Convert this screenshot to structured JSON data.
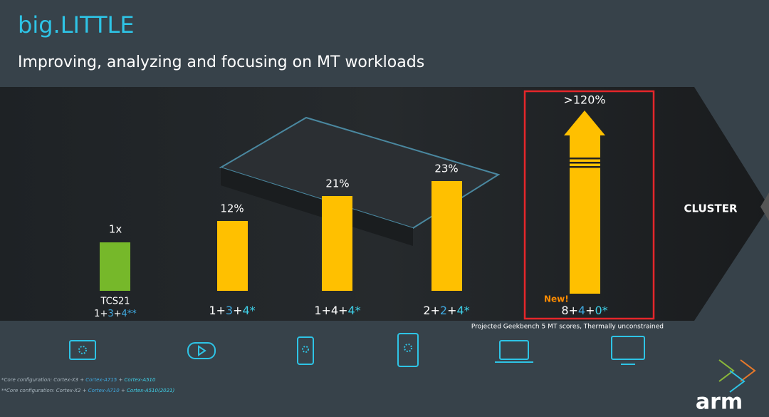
{
  "header": {
    "title": "big.LITTLE",
    "subtitle": "Improving, analyzing and focusing on MT workloads"
  },
  "bars": [
    {
      "label": "1x",
      "name": "TCS21",
      "config": [
        {
          "text": "1+",
          "color": "#ffffff"
        },
        {
          "text": "3",
          "color": "#3fa9e0"
        },
        {
          "text": "+",
          "color": "#ffffff"
        },
        {
          "text": "4**",
          "color": "#3fa9e0"
        }
      ]
    },
    {
      "label": "12%",
      "config": [
        {
          "text": "1+",
          "color": "#ffffff"
        },
        {
          "text": "3",
          "color": "#3fa9e0"
        },
        {
          "text": "+",
          "color": "#ffffff"
        },
        {
          "text": "4*",
          "color": "#3fd0e8"
        }
      ]
    },
    {
      "label": "21%",
      "config": [
        {
          "text": "1+4+",
          "color": "#ffffff"
        },
        {
          "text": "4*",
          "color": "#3fd0e8"
        }
      ]
    },
    {
      "label": "23%",
      "config": [
        {
          "text": "2+",
          "color": "#ffffff"
        },
        {
          "text": "2",
          "color": "#3fa9e0"
        },
        {
          "text": "+",
          "color": "#ffffff"
        },
        {
          "text": "4*",
          "color": "#3fd0e8"
        }
      ]
    },
    {
      "label": ">120%",
      "badge": "New!",
      "config": [
        {
          "text": "8+",
          "color": "#ffffff"
        },
        {
          "text": "4",
          "color": "#3fa9e0"
        },
        {
          "text": "+",
          "color": "#ffffff"
        },
        {
          "text": "0*",
          "color": "#3fd0e8"
        }
      ]
    }
  ],
  "cluster_label": "CLUSTER",
  "source_note": "Projected Geekbench 5 MT scores, Thermally unconstrained",
  "footnotes": [
    [
      {
        "text": "*Core configuration: Cortex-X3 + ",
        "color": "#a9b6bf"
      },
      {
        "text": "Cortex-A715",
        "color": "#3fa9e0"
      },
      {
        "text": " + ",
        "color": "#a9b6bf"
      },
      {
        "text": "Cortex-A510",
        "color": "#3fd0e8"
      }
    ],
    [
      {
        "text": "**Core configuration: Cortex-X2 + ",
        "color": "#a9b6bf"
      },
      {
        "text": "Cortex-A710",
        "color": "#3fa9e0"
      },
      {
        "text": " + ",
        "color": "#a9b6bf"
      },
      {
        "text": "Cortex-A510(2021)",
        "color": "#3fd0e8"
      }
    ]
  ],
  "logo": "arm"
}
